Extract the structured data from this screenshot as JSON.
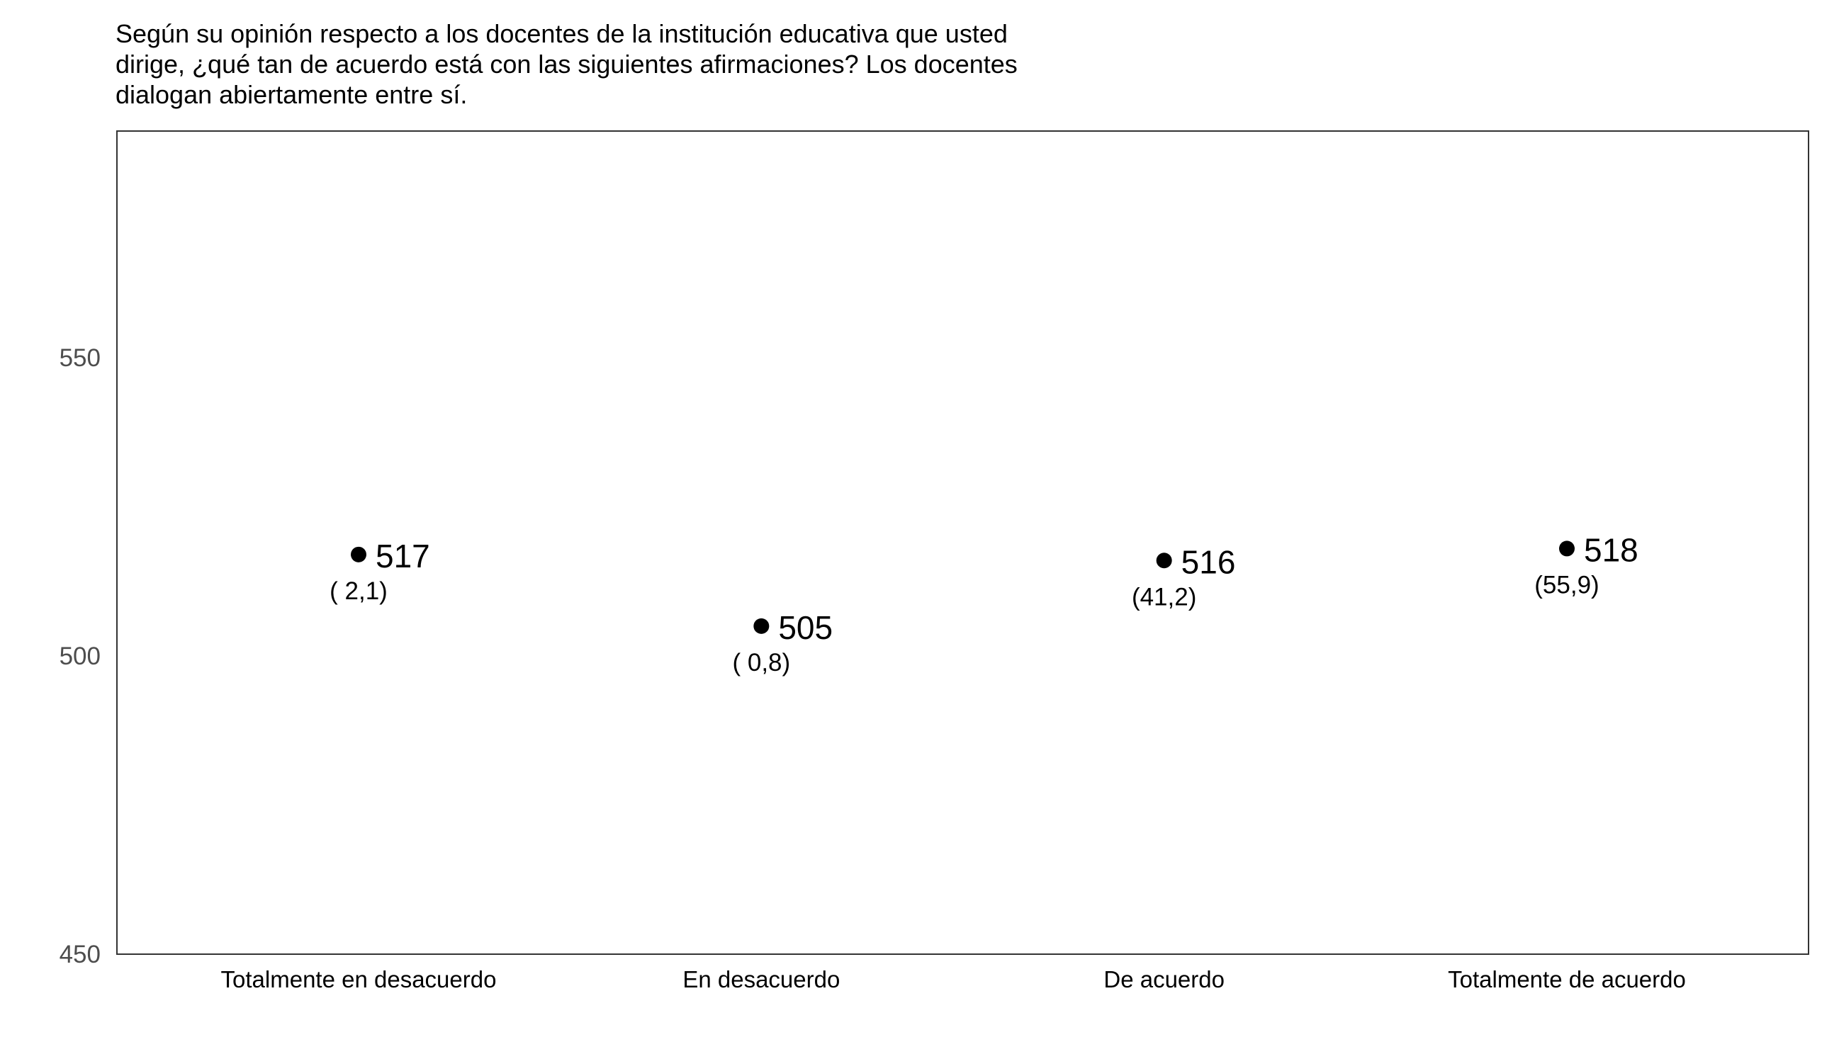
{
  "chart_data": {
    "type": "scatter",
    "title_lines": [
      "Según su opinión respecto a los docentes de la institución educativa que usted",
      "dirige, ¿qué tan de acuerdo está con las siguientes afirmaciones? Los docentes",
      "dialogan abiertamente entre sí."
    ],
    "xlabel": "",
    "ylabel": "",
    "categories": [
      "Totalmente en desacuerdo",
      "En desacuerdo",
      "De acuerdo",
      "Totalmente de acuerdo"
    ],
    "values": [
      517,
      505,
      516,
      518
    ],
    "value_labels": [
      "517",
      "505",
      "516",
      "518"
    ],
    "percent_labels": [
      "( 2,1)",
      "( 0,8)",
      "(41,2)",
      "(55,9)"
    ],
    "ylim": [
      450,
      588
    ],
    "yticks": [
      450,
      500,
      550
    ],
    "ytick_labels": [
      "450",
      "500",
      "550"
    ],
    "grid": false,
    "legend": "none",
    "colors": {
      "point": "#000000",
      "axis_text": "#4d4d4d",
      "frame": "#333333"
    }
  }
}
